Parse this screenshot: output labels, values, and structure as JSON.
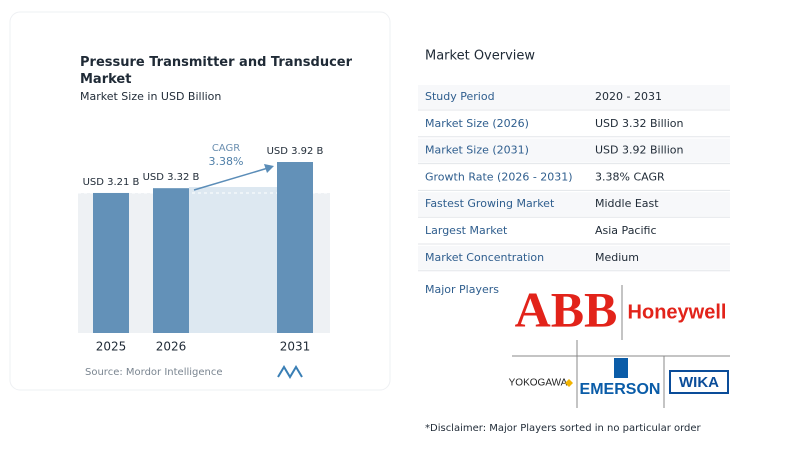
{
  "chart_data": {
    "type": "bar",
    "title": "Pressure Transmitter and Transducer Market",
    "subtitle": "Market Size in USD Billion",
    "categories": [
      "2025",
      "2026",
      "2031"
    ],
    "values": [
      3.21,
      3.32,
      3.92
    ],
    "value_labels": [
      "USD 3.21 B",
      "USD 3.32 B",
      "USD 3.92 B"
    ],
    "color": "#6391b8",
    "annotation": {
      "label": "CAGR",
      "value": "3.38%"
    },
    "source": "Source:  Mordor Intelligence"
  },
  "overview": {
    "title": "Market Overview",
    "rows": [
      [
        "Study Period",
        "2020 - 2031"
      ],
      [
        "Market Size (2026)",
        "USD 3.32 Billion"
      ],
      [
        "Market Size (2031)",
        "USD 3.92 Billion"
      ],
      [
        "Growth Rate (2026 - 2031)",
        "3.38% CAGR"
      ],
      [
        "Fastest Growing Market",
        "Middle East"
      ],
      [
        "Largest Market",
        "Asia Pacific"
      ],
      [
        "Market Concentration",
        "Medium"
      ]
    ],
    "players_label": "Major Players",
    "players": [
      "ABB",
      "Honeywell",
      "YOKOGAWA",
      "EMERSON",
      "WIKA"
    ],
    "disclaimer": "*Disclaimer: Major Players sorted in no particular order"
  }
}
